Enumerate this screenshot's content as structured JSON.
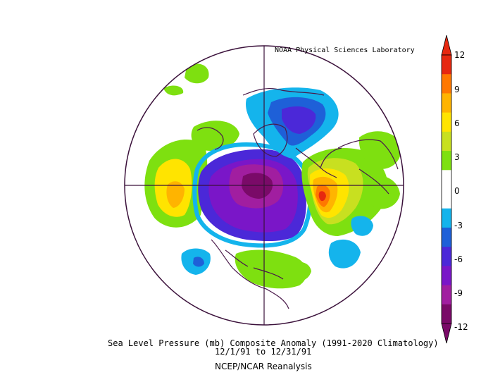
{
  "header": {
    "credit": "NOAA Physical Sciences Laboratory"
  },
  "footer": {
    "title": "Sea Level Pressure (mb) Composite Anomaly (1991-2020 Climatology)",
    "dates": "12/1/91  to 12/31/91",
    "source": "NCEP/NCAR Reanalysis"
  },
  "colorbar": {
    "ticks": [
      "12",
      "9",
      "6",
      "3",
      "0",
      "-3",
      "-6",
      "-9",
      "-12"
    ],
    "colors": [
      "#7a0a68",
      "#a11ea0",
      "#7a16c8",
      "#4b28d8",
      "#1e60d8",
      "#14b4ec",
      "#ffffff",
      "#ffffff",
      "#7ee010",
      "#c8e020",
      "#ffe400",
      "#ffb400",
      "#ff7800",
      "#e62810"
    ]
  },
  "map": {
    "projection": "north-polar-stereographic",
    "field": "sea-level-pressure-anomaly",
    "units": "mb"
  }
}
